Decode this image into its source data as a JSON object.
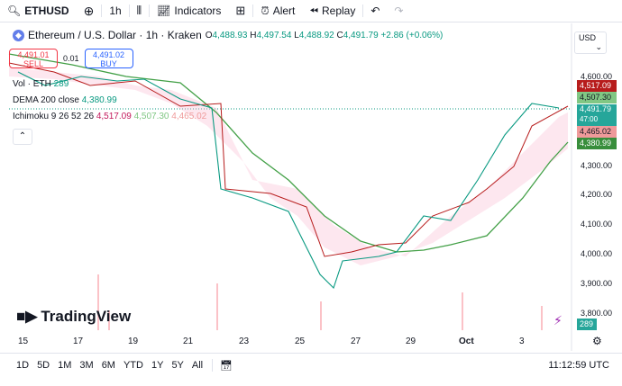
{
  "toolbar": {
    "symbol": "ETHUSD",
    "interval": "1h",
    "indicators": "Indicators",
    "alert": "Alert",
    "replay": "Replay"
  },
  "legend": {
    "title": "Ethereum / U.S. Dollar · 1h · Kraken",
    "o_label": "O",
    "o": "4,488.93",
    "h_label": "H",
    "h": "4,497.54",
    "l_label": "L",
    "l": "4,488.92",
    "c_label": "C",
    "c": "4,491.79",
    "change": "+2.86 (+0.06%)"
  },
  "trade": {
    "sell_price": "4,491.01",
    "sell": "SELL",
    "spread": "0.01",
    "buy_price": "4,491.02",
    "buy": "BUY"
  },
  "indicators": {
    "vol_name": "Vol · ETH",
    "vol_val": "289",
    "dema_name": "DEMA 200 close",
    "dema_val": "4,380.99",
    "ichi_name": "Ichimoku 9 26 52 26",
    "ichi_v1": "4,517.09",
    "ichi_v2": "4,507.30",
    "ichi_v3": "4,465.02"
  },
  "currency": "USD",
  "yaxis": [
    "4,600.00",
    "4,300.00",
    "4,200.00",
    "4,100.00",
    "4,000.00",
    "3,900.00",
    "3,800.00"
  ],
  "ytags": {
    "t1": "4,517.09",
    "t2": "4,507.30",
    "t3": "4,491.79",
    "t3b": "47:00",
    "t4": "4,465.02",
    "t5": "4,380.99",
    "t6": "289"
  },
  "xaxis": [
    "15",
    "17",
    "19",
    "21",
    "23",
    "25",
    "27",
    "29",
    "Oct",
    "3"
  ],
  "bottom": {
    "ranges": [
      "1D",
      "5D",
      "1M",
      "3M",
      "6M",
      "YTD",
      "1Y",
      "5Y",
      "All"
    ],
    "time": "11:12:59 UTC"
  },
  "brand": "TradingView",
  "colors": {
    "up": "#089981",
    "down": "#f23645",
    "dema": "#43a047",
    "ichimoku_line": "#b71c1c"
  }
}
